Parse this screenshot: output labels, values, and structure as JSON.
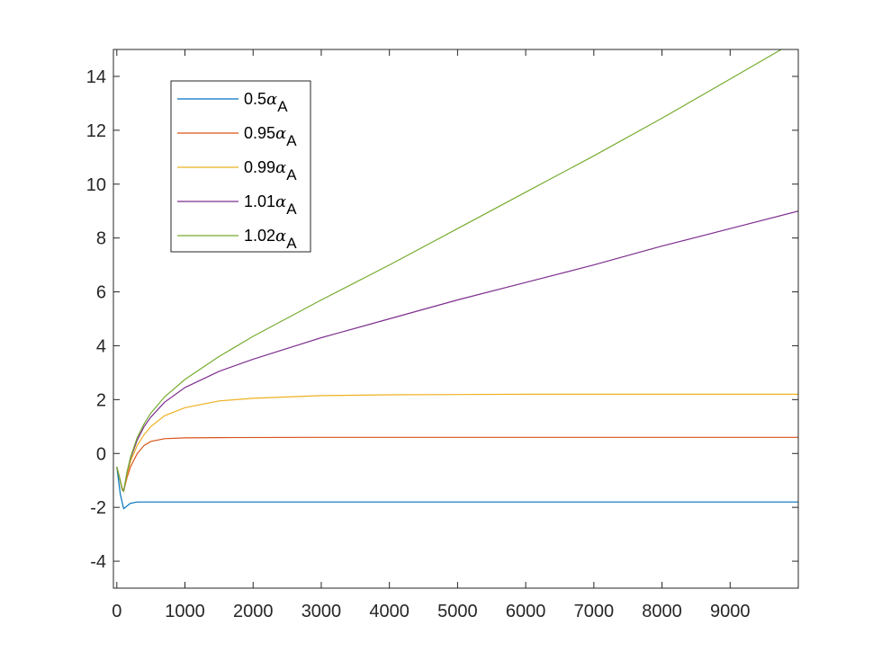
{
  "chart_data": {
    "type": "line",
    "xlim": [
      -50,
      10000
    ],
    "ylim": [
      -5,
      15
    ],
    "xticks": [
      0,
      1000,
      2000,
      3000,
      4000,
      5000,
      6000,
      7000,
      8000,
      9000
    ],
    "yticks": [
      -4,
      -2,
      0,
      2,
      4,
      6,
      8,
      10,
      12,
      14
    ],
    "grid": false,
    "legend_position": "top-left",
    "title": "",
    "xlabel": "",
    "ylabel": "",
    "series": [
      {
        "legend_prefix": "0.5",
        "legend_symbol": "α",
        "legend_subscript": "A",
        "color": "#0072BD",
        "points": [
          [
            0,
            -0.5
          ],
          [
            50,
            -1.5
          ],
          [
            100,
            -2.05
          ],
          [
            150,
            -1.95
          ],
          [
            200,
            -1.85
          ],
          [
            300,
            -1.8
          ],
          [
            500,
            -1.8
          ],
          [
            1000,
            -1.8
          ],
          [
            3000,
            -1.8
          ],
          [
            6000,
            -1.8
          ],
          [
            10000,
            -1.8
          ]
        ]
      },
      {
        "legend_prefix": "0.95",
        "legend_symbol": "α",
        "legend_subscript": "A",
        "color": "#D95319",
        "points": [
          [
            0,
            -0.5
          ],
          [
            40,
            -0.9
          ],
          [
            80,
            -1.3
          ],
          [
            100,
            -1.4
          ],
          [
            150,
            -0.9
          ],
          [
            200,
            -0.5
          ],
          [
            300,
            0.0
          ],
          [
            400,
            0.3
          ],
          [
            500,
            0.45
          ],
          [
            600,
            0.5
          ],
          [
            700,
            0.55
          ],
          [
            1000,
            0.58
          ],
          [
            1500,
            0.59
          ],
          [
            3000,
            0.6
          ],
          [
            6000,
            0.6
          ],
          [
            10000,
            0.6
          ]
        ]
      },
      {
        "legend_prefix": "0.99",
        "legend_symbol": "α",
        "legend_subscript": "A",
        "color": "#EDB120",
        "points": [
          [
            0,
            -0.5
          ],
          [
            40,
            -0.9
          ],
          [
            80,
            -1.35
          ],
          [
            100,
            -1.4
          ],
          [
            150,
            -0.8
          ],
          [
            200,
            -0.3
          ],
          [
            300,
            0.3
          ],
          [
            400,
            0.7
          ],
          [
            500,
            1.0
          ],
          [
            700,
            1.4
          ],
          [
            1000,
            1.7
          ],
          [
            1500,
            1.95
          ],
          [
            2000,
            2.05
          ],
          [
            3000,
            2.15
          ],
          [
            4000,
            2.18
          ],
          [
            6000,
            2.2
          ],
          [
            8000,
            2.2
          ],
          [
            10000,
            2.2
          ]
        ]
      },
      {
        "legend_prefix": "1.01",
        "legend_symbol": "α",
        "legend_subscript": "A",
        "color": "#7E2F8E",
        "points": [
          [
            0,
            -0.5
          ],
          [
            40,
            -0.9
          ],
          [
            80,
            -1.35
          ],
          [
            100,
            -1.4
          ],
          [
            150,
            -0.7
          ],
          [
            200,
            -0.2
          ],
          [
            300,
            0.5
          ],
          [
            400,
            1.0
          ],
          [
            500,
            1.35
          ],
          [
            700,
            1.9
          ],
          [
            1000,
            2.45
          ],
          [
            1500,
            3.05
          ],
          [
            2000,
            3.5
          ],
          [
            3000,
            4.3
          ],
          [
            4000,
            5.0
          ],
          [
            5000,
            5.7
          ],
          [
            6000,
            6.35
          ],
          [
            7000,
            7.0
          ],
          [
            8000,
            7.7
          ],
          [
            9000,
            8.35
          ],
          [
            10000,
            9.0
          ]
        ]
      },
      {
        "legend_prefix": "1.02",
        "legend_symbol": "α",
        "legend_subscript": "A",
        "color": "#77AC30",
        "points": [
          [
            0,
            -0.5
          ],
          [
            40,
            -0.9
          ],
          [
            80,
            -1.35
          ],
          [
            100,
            -1.4
          ],
          [
            150,
            -0.7
          ],
          [
            200,
            -0.15
          ],
          [
            300,
            0.6
          ],
          [
            400,
            1.1
          ],
          [
            500,
            1.5
          ],
          [
            700,
            2.1
          ],
          [
            1000,
            2.75
          ],
          [
            1500,
            3.6
          ],
          [
            2000,
            4.35
          ],
          [
            3000,
            5.7
          ],
          [
            4000,
            7.0
          ],
          [
            5000,
            8.35
          ],
          [
            6000,
            9.7
          ],
          [
            7000,
            11.05
          ],
          [
            8000,
            12.45
          ],
          [
            9000,
            13.9
          ],
          [
            9750,
            15.0
          ]
        ]
      }
    ]
  }
}
